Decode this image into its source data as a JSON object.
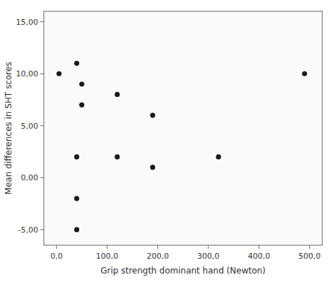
{
  "chart_data": {
    "type": "scatter",
    "x": [
      5,
      40,
      40,
      50,
      50,
      120,
      120,
      190,
      190,
      320,
      40,
      40,
      490
    ],
    "values": [
      10,
      2,
      11,
      9,
      7,
      8,
      2,
      6,
      1,
      2,
      -2,
      -5,
      10
    ],
    "xlabel": "Grip strength dominant hand (Newton)",
    "ylabel": "Mean differences in SHT scores",
    "xlim": [
      -25,
      525
    ],
    "ylim": [
      -6.5,
      16
    ],
    "xticks": [
      {
        "value": 0,
        "label": "0,0"
      },
      {
        "value": 100,
        "label": "100,0"
      },
      {
        "value": 200,
        "label": "200,0"
      },
      {
        "value": 300,
        "label": "300,0"
      },
      {
        "value": 400,
        "label": "400,0"
      },
      {
        "value": 500,
        "label": "500,0"
      }
    ],
    "yticks": [
      {
        "value": -5,
        "label": "-5,00"
      },
      {
        "value": 0,
        "label": "0,00"
      },
      {
        "value": 5,
        "label": "5,00"
      },
      {
        "value": 10,
        "label": "10,00"
      },
      {
        "value": 15,
        "label": "15,00"
      }
    ],
    "color": "#1a1a1a",
    "grid": false
  }
}
